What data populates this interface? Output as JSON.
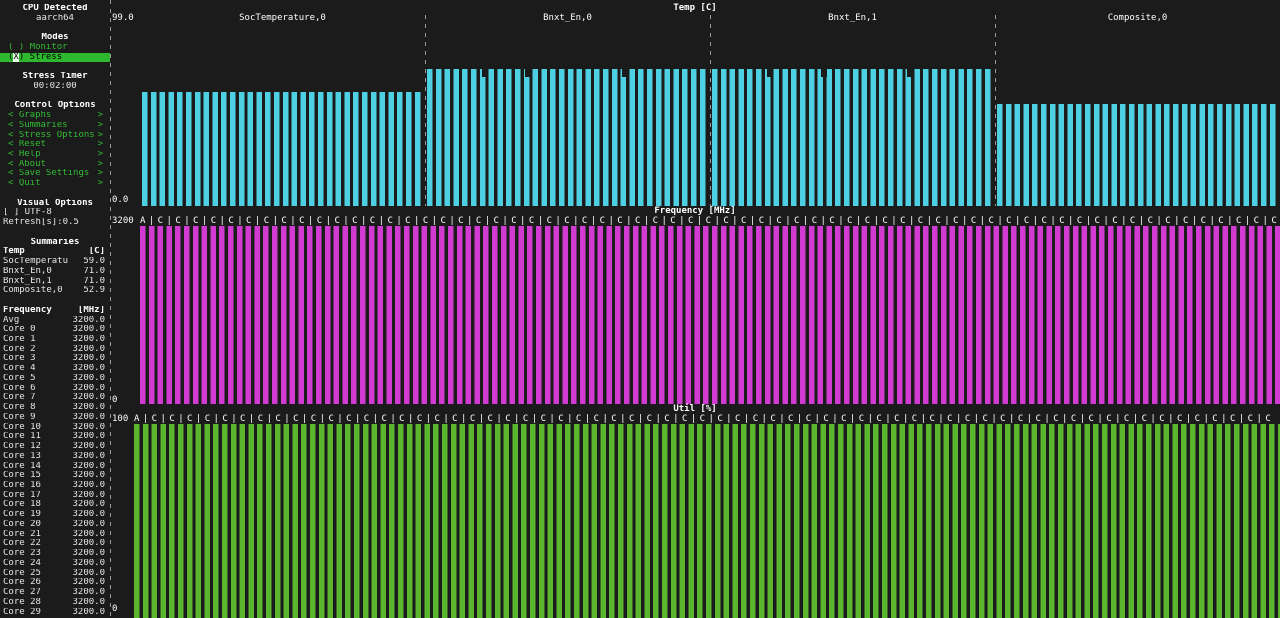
{
  "theme": {
    "bg": "#1b1b1b",
    "fg": "#e6e6e6",
    "green": "#33bb33",
    "selected_bg": "#2db82d",
    "divider": "#9a9a9a",
    "temp_bar": "#4dd1e2",
    "freq_bar": "#d23bd2",
    "util_bar": "#5ab62c"
  },
  "sidebar": {
    "cpu": {
      "label": "CPU Detected",
      "value": "aarch64"
    },
    "modes": {
      "label": "Modes",
      "items": [
        {
          "name": "monitor",
          "label": "( ) Monitor",
          "selected": false
        },
        {
          "name": "stress",
          "label": "(X) Stress",
          "selected": true
        }
      ]
    },
    "stress_timer": {
      "label": "Stress Timer",
      "value": "00:02:00"
    },
    "control_options": {
      "label": "Control Options",
      "prefix": "<",
      "suffix": ">",
      "items": [
        "Graphs",
        "Summaries",
        "Stress Options",
        "Reset",
        "Help",
        "About",
        "Save Settings",
        "Quit"
      ]
    },
    "visual_options": {
      "label": "Visual Options",
      "utf8": "[ ] UTF-8",
      "refresh": "Refresh[s]:0.5"
    },
    "summaries": {
      "label": "Summaries",
      "temp": {
        "name": "Temp",
        "unit": "[C]",
        "rows": [
          {
            "name": "SocTemperatu",
            "value": "59.0"
          },
          {
            "name": "Bnxt_En,0",
            "value": "71.0"
          },
          {
            "name": "Bnxt_En,1",
            "value": "71.0"
          },
          {
            "name": "Composite,0",
            "value": "52.9"
          }
        ]
      },
      "frequency": {
        "name": "Frequency",
        "unit": "[MHz]",
        "rows": [
          {
            "name": "Avg",
            "value": "3200.0"
          },
          {
            "name": "Core 0",
            "value": "3200.0"
          },
          {
            "name": "Core 1",
            "value": "3200.0"
          },
          {
            "name": "Core 2",
            "value": "3200.0"
          },
          {
            "name": "Core 3",
            "value": "3200.0"
          },
          {
            "name": "Core 4",
            "value": "3200.0"
          },
          {
            "name": "Core 5",
            "value": "3200.0"
          },
          {
            "name": "Core 6",
            "value": "3200.0"
          },
          {
            "name": "Core 7",
            "value": "3200.0"
          },
          {
            "name": "Core 8",
            "value": "3200.0"
          },
          {
            "name": "Core 9",
            "value": "3200.0"
          },
          {
            "name": "Core 10",
            "value": "3200.0"
          },
          {
            "name": "Core 11",
            "value": "3200.0"
          },
          {
            "name": "Core 12",
            "value": "3200.0"
          },
          {
            "name": "Core 13",
            "value": "3200.0"
          },
          {
            "name": "Core 14",
            "value": "3200.0"
          },
          {
            "name": "Core 15",
            "value": "3200.0"
          },
          {
            "name": "Core 16",
            "value": "3200.0"
          },
          {
            "name": "Core 17",
            "value": "3200.0"
          },
          {
            "name": "Core 18",
            "value": "3200.0"
          },
          {
            "name": "Core 19",
            "value": "3200.0"
          },
          {
            "name": "Core 20",
            "value": "3200.0"
          },
          {
            "name": "Core 21",
            "value": "3200.0"
          },
          {
            "name": "Core 22",
            "value": "3200.0"
          },
          {
            "name": "Core 23",
            "value": "3200.0"
          },
          {
            "name": "Core 24",
            "value": "3200.0"
          },
          {
            "name": "Core 25",
            "value": "3200.0"
          },
          {
            "name": "Core 26",
            "value": "3200.0"
          },
          {
            "name": "Core 27",
            "value": "3200.0"
          },
          {
            "name": "Core 28",
            "value": "3200.0"
          },
          {
            "name": "Core 29",
            "value": "3200.0"
          }
        ]
      }
    }
  },
  "chart_data": [
    {
      "type": "bar",
      "title": "Temp [C]",
      "ylim": [
        0,
        99
      ],
      "ylabel_top": "99.0",
      "ylabel_bottom": "0.0",
      "color": "#4dd1e2",
      "sections": [
        {
          "label": "SocTemperature,0",
          "value": 59.0,
          "dips": []
        },
        {
          "label": "Bnxt_En,0",
          "value": 71.0,
          "dips": [
            0.2,
            0.35,
            0.69
          ]
        },
        {
          "label": "Bnxt_En,1",
          "value": 71.0,
          "dips": [
            0.2,
            0.39,
            0.69
          ]
        },
        {
          "label": "Composite,0",
          "value": 52.9,
          "dips": []
        }
      ]
    },
    {
      "type": "bar",
      "title": "Frequency [MHz]",
      "ylim": [
        0,
        3200
      ],
      "ylabel_top": "3200",
      "ylabel_bottom": "0",
      "value": 3200,
      "color": "#d23bd2",
      "slot_labels": "A|C|C|C|C|C|C|C|C|C|C|C|C|C|C|C|C|C|C|C|C|C|C|C|C|C|C|C|C|C|C|C|C|C|C|C|C|C|C|C|C|C|C|C|C|C|C|C|C|C|C|C|C|C|C|C|C|C|C|C|C|C|C|C|C"
    },
    {
      "type": "bar",
      "title": "Util [%]",
      "ylim": [
        0,
        100
      ],
      "ylabel_top": "100",
      "ylabel_bottom": "0",
      "value": 100,
      "color": "#5ab62c",
      "slot_labels": "A|C|C|C|C|C|C|C|C|C|C|C|C|C|C|C|C|C|C|C|C|C|C|C|C|C|C|C|C|C|C|C|C|C|C|C|C|C|C|C|C|C|C|C|C|C|C|C|C|C|C|C|C|C|C|C|C|C|C|C|C|C|C|C|C"
    }
  ]
}
